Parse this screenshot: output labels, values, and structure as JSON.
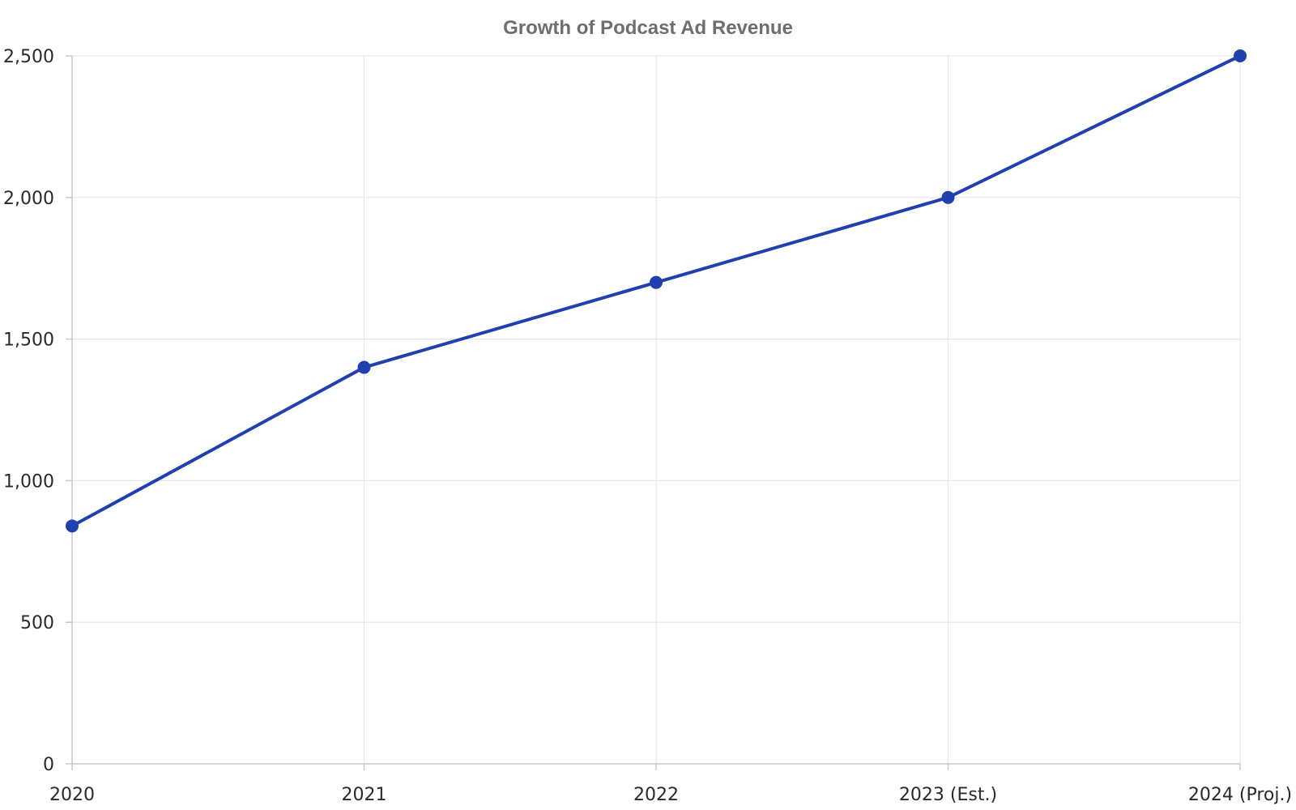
{
  "chart_data": {
    "type": "line",
    "title": "Growth of Podcast Ad Revenue",
    "xlabel": "",
    "ylabel": "",
    "categories": [
      "2020",
      "2021",
      "2022",
      "2023 (Est.)",
      "2024 (Proj.)"
    ],
    "series": [
      {
        "values": [
          840,
          1400,
          1700,
          2000,
          2500
        ],
        "color": "#2140b0"
      }
    ],
    "ylim": [
      0,
      2500
    ],
    "yticks": [
      0,
      500,
      1000,
      1500,
      2000,
      2500
    ],
    "ytick_labels": [
      "0",
      "500",
      "1,000",
      "1,500",
      "2,000",
      "2,500"
    ],
    "grid": true,
    "legend": "none"
  }
}
